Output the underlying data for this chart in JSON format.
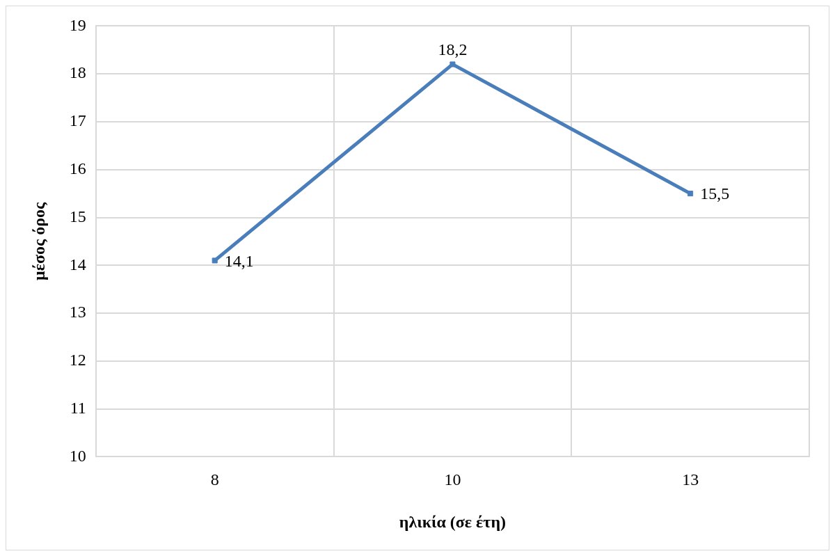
{
  "chart_data": {
    "type": "line",
    "xlabel": "ηλικία (σε έτη)",
    "ylabel": "μέσος όρος",
    "categories": [
      "8",
      "10",
      "13"
    ],
    "series": [
      {
        "color": "#4a7ebb",
        "values": [
          14.1,
          18.2,
          15.5
        ],
        "value_labels": [
          "14,1",
          "18,2",
          "15,5"
        ]
      }
    ],
    "ylim": [
      10,
      19
    ],
    "yticks": [
      10,
      11,
      12,
      13,
      14,
      15,
      16,
      17,
      18,
      19
    ],
    "grid": true,
    "legend": false,
    "marker": "square",
    "line_style": "solid"
  }
}
